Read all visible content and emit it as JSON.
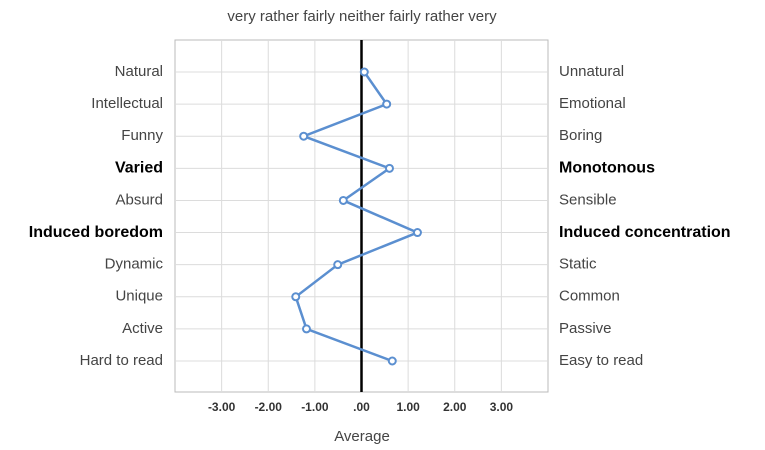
{
  "chart_data": {
    "type": "line",
    "scale_header": "very rather fairly neither fairly rather very",
    "xlabel": "Average",
    "categories": [
      "Natural",
      "Intellectual",
      "Funny",
      "Varied",
      "Absurd",
      "Induced boredom",
      "Dynamic",
      "Unique",
      "Active",
      "Hard to read"
    ],
    "right_labels": [
      "Unnatural",
      "Emotional",
      "Boring",
      "Monotonous",
      "Sensible",
      "Induced concentration",
      "Static",
      "Common",
      "Passive",
      "Easy to read"
    ],
    "bold_rows": [
      3,
      5
    ],
    "series": [
      {
        "color": "#5b8fd0",
        "values": [
          0.06,
          0.54,
          -1.24,
          0.6,
          -0.39,
          1.2,
          -0.51,
          -1.41,
          -1.18,
          0.66
        ]
      }
    ],
    "xlim": [
      -4,
      4
    ],
    "xticks": [
      {
        "value": -3,
        "label": "-3.00"
      },
      {
        "value": -2,
        "label": "-2.00"
      },
      {
        "value": -1,
        "label": "-1.00"
      },
      {
        "value": 0,
        "label": ".00"
      },
      {
        "value": 1,
        "label": "1.00"
      },
      {
        "value": 2,
        "label": "2.00"
      },
      {
        "value": 3,
        "label": "3.00"
      }
    ],
    "grid": true
  }
}
